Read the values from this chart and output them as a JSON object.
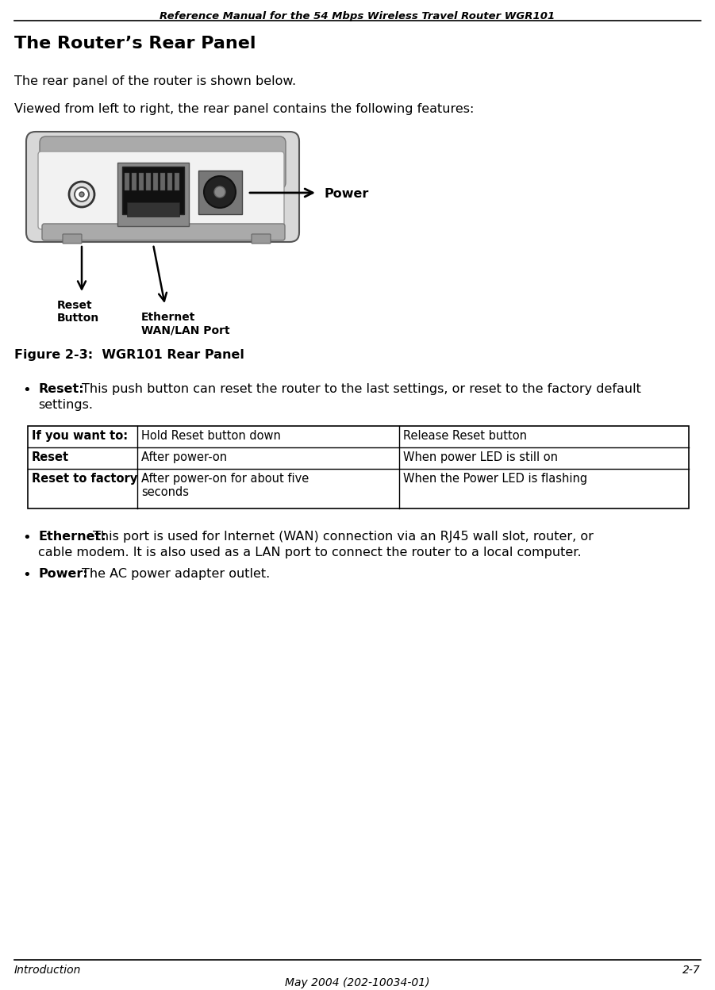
{
  "header_text": "Reference Manual for the 54 Mbps Wireless Travel Router WGR101",
  "title": "The Router’s Rear Panel",
  "para1": "The rear panel of the router is shown below.",
  "para2": "Viewed from left to right, the rear panel contains the following features:",
  "figure_caption": "Figure 2-3:  WGR101 Rear Panel",
  "bullet1_bold": "Reset:",
  "bullet1_line1": "Reset: This push button can reset the router to the last settings, or reset to the factory default",
  "bullet1_line2": "settings.",
  "table_headers": [
    "If you want to:",
    "Hold Reset button down",
    "Release Reset button"
  ],
  "table_row1_c0": "Reset",
  "table_row1_c1": "After power-on",
  "table_row1_c2": "When power LED is still on",
  "table_row2_c0": "Reset to factory",
  "table_row2_c1a": "After power-on for about five",
  "table_row2_c1b": "seconds",
  "table_row2_c2": "When the Power LED is flashing",
  "bullet2_line1": "Ethernet: This port is used for Internet (WAN) connection via an RJ45 wall slot, router, or",
  "bullet2_line2": "cable modem. It is also used as a LAN port to connect the router to a local computer.",
  "bullet2_bold": "Ethernet:",
  "bullet3_bold": "Power:",
  "bullet3_text": "Power: The AC power adapter outlet.",
  "label_power": "Power",
  "label_reset_l1": "Reset",
  "label_reset_l2": "Button",
  "label_eth_l1": "Ethernet",
  "label_eth_l2": "WAN/LAN Port",
  "footer_left": "Introduction",
  "footer_right": "2-7",
  "footer_center": "May 2004 (202-10034-01)",
  "bg_color": "#ffffff",
  "text_color": "#000000"
}
